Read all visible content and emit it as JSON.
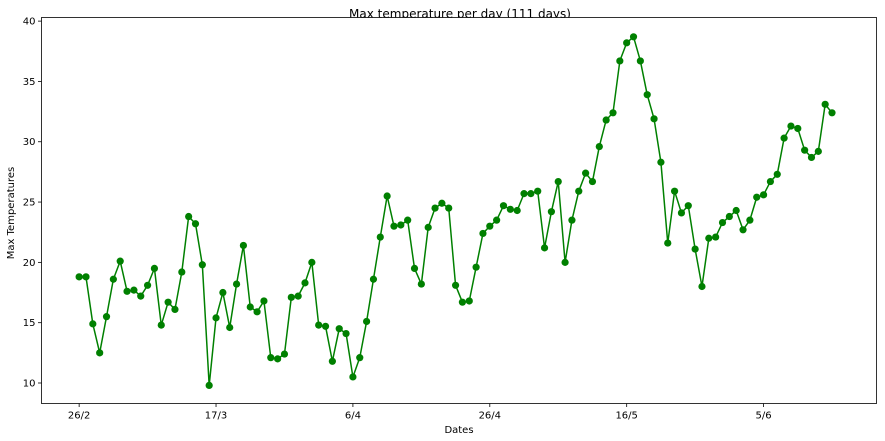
{
  "chart_data": {
    "type": "line",
    "title": "Max temperature per day (111 days)",
    "xlabel": "Dates",
    "ylabel": "Max Temperatures",
    "xlim": [
      -5.5,
      116.5
    ],
    "ylim": [
      8.3,
      40.3
    ],
    "x_ticks": [
      {
        "pos": 0,
        "label": "26/2"
      },
      {
        "pos": 20,
        "label": "17/3"
      },
      {
        "pos": 40,
        "label": "6/4"
      },
      {
        "pos": 60,
        "label": "26/4"
      },
      {
        "pos": 80,
        "label": "16/5"
      },
      {
        "pos": 100,
        "label": "5/6"
      }
    ],
    "y_ticks": [
      10,
      15,
      20,
      25,
      30,
      35,
      40
    ],
    "grid": false,
    "line_color": "#008000",
    "series": [
      {
        "values": [
          18.8,
          18.8,
          14.9,
          12.5,
          15.5,
          18.6,
          20.1,
          17.6,
          17.7,
          17.2,
          18.1,
          19.5,
          14.8,
          16.7,
          16.1,
          19.2,
          23.8,
          23.2,
          19.8,
          9.8,
          15.4,
          17.5,
          14.6,
          18.2,
          21.4,
          16.3,
          15.9,
          16.8,
          12.1,
          12.0,
          12.4,
          17.1,
          17.2,
          18.3,
          20.0,
          14.8,
          14.7,
          11.8,
          14.5,
          14.1,
          10.5,
          12.1,
          15.1,
          18.6,
          22.1,
          25.5,
          23.0,
          23.1,
          23.5,
          19.5,
          18.2,
          22.9,
          24.5,
          24.9,
          24.5,
          18.1,
          16.7,
          16.8,
          19.6,
          22.4,
          23.0,
          23.5,
          24.7,
          24.4,
          24.3,
          25.7,
          25.7,
          25.9,
          21.2,
          24.2,
          26.7,
          20.0,
          23.5,
          25.9,
          27.4,
          26.7,
          29.6,
          31.8,
          32.4,
          36.7,
          38.2,
          38.7,
          36.7,
          33.9,
          31.9,
          28.3,
          21.6,
          25.9,
          24.1,
          24.7,
          21.1,
          18.0,
          22.0,
          22.1,
          23.3,
          23.8,
          24.3,
          22.7,
          23.5,
          25.4,
          25.6,
          26.7,
          27.3,
          30.3,
          31.3,
          31.1,
          29.3,
          28.7,
          29.2,
          33.1,
          32.4
        ]
      }
    ]
  }
}
